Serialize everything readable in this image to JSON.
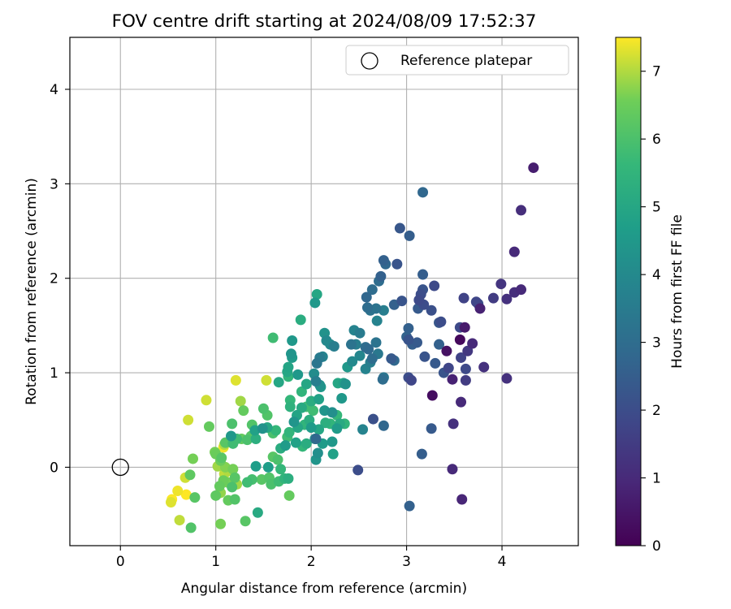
{
  "chart_data": {
    "type": "scatter",
    "title": "FOV centre drift starting at 2024/08/09 17:52:37",
    "xlabel": "Angular distance from reference (arcmin)",
    "ylabel": "Rotation from reference (arcmin)",
    "xlim": [
      -0.53,
      4.8
    ],
    "ylim": [
      -0.83,
      4.55
    ],
    "xticks": [
      0,
      1,
      2,
      3,
      4
    ],
    "yticks": [
      0,
      1,
      2,
      3,
      4
    ],
    "grid": true,
    "legend": {
      "placement": "top-right",
      "entries": [
        "Reference platepar"
      ]
    },
    "reference_point": {
      "x": 0,
      "y": 0,
      "label": "Reference platepar"
    },
    "colorbar": {
      "label": "Hours from first FF file",
      "min": 0,
      "max": 7.5,
      "ticks": [
        0,
        1,
        2,
        3,
        4,
        5,
        6,
        7
      ],
      "colormap": "viridis"
    },
    "points": [
      [
        4.33,
        3.17,
        0.7
      ],
      [
        4.2,
        2.72,
        1.1
      ],
      [
        4.13,
        2.28,
        1.0
      ],
      [
        4.2,
        1.88,
        1.0
      ],
      [
        4.13,
        1.85,
        1.1
      ],
      [
        4.05,
        1.78,
        1.2
      ],
      [
        3.99,
        1.94,
        1.3
      ],
      [
        3.91,
        1.79,
        1.5
      ],
      [
        3.75,
        1.73,
        2.0
      ],
      [
        3.73,
        1.75,
        1.8
      ],
      [
        3.77,
        1.68,
        0.8
      ],
      [
        3.6,
        1.79,
        1.7
      ],
      [
        3.56,
        1.48,
        1.9
      ],
      [
        3.61,
        1.48,
        0.6
      ],
      [
        3.56,
        1.35,
        0.2
      ],
      [
        3.42,
        1.23,
        0.4
      ],
      [
        3.64,
        1.23,
        1.4
      ],
      [
        3.69,
        1.31,
        1.0
      ],
      [
        3.57,
        1.16,
        1.7
      ],
      [
        3.62,
        1.04,
        1.9
      ],
      [
        3.81,
        1.06,
        1.2
      ],
      [
        3.62,
        0.92,
        1.5
      ],
      [
        3.44,
        1.05,
        1.8
      ],
      [
        3.48,
        0.93,
        0.8
      ],
      [
        3.39,
        1.0,
        2.2
      ],
      [
        3.3,
        1.1,
        2.4
      ],
      [
        3.34,
        1.3,
        2.6
      ],
      [
        3.34,
        1.53,
        2.3
      ],
      [
        3.36,
        1.54,
        2.0
      ],
      [
        3.29,
        1.92,
        1.9
      ],
      [
        3.17,
        1.88,
        2.2
      ],
      [
        3.15,
        1.83,
        2.0
      ],
      [
        3.13,
        1.77,
        1.9
      ],
      [
        3.12,
        1.68,
        2.4
      ],
      [
        3.18,
        1.72,
        2.0
      ],
      [
        3.26,
        1.66,
        2.1
      ],
      [
        3.17,
        2.04,
        2.5
      ],
      [
        3.17,
        2.91,
        2.8
      ],
      [
        3.03,
        2.45,
        2.5
      ],
      [
        2.93,
        2.53,
        2.3
      ],
      [
        2.9,
        2.15,
        2.2
      ],
      [
        2.76,
        2.19,
        2.6
      ],
      [
        2.78,
        2.15,
        2.8
      ],
      [
        2.71,
        1.97,
        3.0
      ],
      [
        2.73,
        2.02,
        2.6
      ],
      [
        2.95,
        1.76,
        2.2
      ],
      [
        2.87,
        1.72,
        2.6
      ],
      [
        2.76,
        1.66,
        3.6
      ],
      [
        2.68,
        1.68,
        3.2
      ],
      [
        2.64,
        1.88,
        3.0
      ],
      [
        2.58,
        1.8,
        2.8
      ],
      [
        2.59,
        1.69,
        3.0
      ],
      [
        2.62,
        1.66,
        3.2
      ],
      [
        2.69,
        1.55,
        3.8
      ],
      [
        2.51,
        1.42,
        3.5
      ],
      [
        2.45,
        1.45,
        3.8
      ],
      [
        2.42,
        1.3,
        3.2
      ],
      [
        2.47,
        1.3,
        3.6
      ],
      [
        2.57,
        1.27,
        3.0
      ],
      [
        2.6,
        1.25,
        2.9
      ],
      [
        2.68,
        1.32,
        3.2
      ],
      [
        2.7,
        1.2,
        3.4
      ],
      [
        2.64,
        1.15,
        3.0
      ],
      [
        2.62,
        1.11,
        3.6
      ],
      [
        2.57,
        1.04,
        3.8
      ],
      [
        2.51,
        1.18,
        3.9
      ],
      [
        2.43,
        1.12,
        4.0
      ],
      [
        2.38,
        1.06,
        4.5
      ],
      [
        2.34,
        0.89,
        4.8
      ],
      [
        2.36,
        0.88,
        4.3
      ],
      [
        2.32,
        0.73,
        4.5
      ],
      [
        2.28,
        0.89,
        5.0
      ],
      [
        2.75,
        0.93,
        3.0
      ],
      [
        2.76,
        0.95,
        3.3
      ],
      [
        2.84,
        1.15,
        2.4
      ],
      [
        2.87,
        1.13,
        2.8
      ],
      [
        3.0,
        1.38,
        2.7
      ],
      [
        3.02,
        1.35,
        2.2
      ],
      [
        3.06,
        1.3,
        2.5
      ],
      [
        3.11,
        1.32,
        2.4
      ],
      [
        3.02,
        1.47,
        2.6
      ],
      [
        3.02,
        0.95,
        2.0
      ],
      [
        3.05,
        0.92,
        1.8
      ],
      [
        3.19,
        1.17,
        2.2
      ],
      [
        3.27,
        0.76,
        0.3
      ],
      [
        3.26,
        0.41,
        2.4
      ],
      [
        3.49,
        0.46,
        1.2
      ],
      [
        3.16,
        0.14,
        2.5
      ],
      [
        3.57,
        0.69,
        1.0
      ],
      [
        3.48,
        -0.02,
        1.0
      ],
      [
        3.58,
        -0.34,
        0.9
      ],
      [
        3.03,
        -0.41,
        2.6
      ],
      [
        2.49,
        -0.03,
        2.0
      ],
      [
        2.65,
        0.51,
        2.1
      ],
      [
        2.76,
        0.44,
        2.8
      ],
      [
        2.54,
        0.4,
        3.8
      ],
      [
        4.05,
        0.94,
        1.2
      ],
      [
        2.14,
        1.42,
        4.3
      ],
      [
        2.16,
        1.34,
        4.0
      ],
      [
        2.2,
        1.3,
        4.0
      ],
      [
        2.24,
        1.28,
        3.6
      ],
      [
        2.12,
        1.17,
        3.8
      ],
      [
        2.09,
        1.16,
        3.5
      ],
      [
        2.06,
        1.1,
        3.3
      ],
      [
        2.03,
        0.99,
        4.1
      ],
      [
        2.05,
        0.91,
        3.6
      ],
      [
        2.09,
        0.87,
        4.3
      ],
      [
        2.1,
        0.85,
        4.5
      ],
      [
        2.04,
        1.74,
        4.5
      ],
      [
        2.06,
        1.83,
        5.0
      ],
      [
        1.89,
        1.56,
        5.2
      ],
      [
        1.8,
        1.34,
        4.5
      ],
      [
        1.79,
        1.2,
        4.4
      ],
      [
        1.8,
        1.16,
        4.6
      ],
      [
        1.76,
        1.06,
        4.9
      ],
      [
        1.75,
        1.01,
        5.0
      ],
      [
        1.76,
        0.96,
        5.5
      ],
      [
        1.6,
        1.37,
        5.8
      ],
      [
        1.66,
        0.9,
        5.0
      ],
      [
        1.86,
        0.98,
        4.5
      ],
      [
        1.95,
        0.88,
        5.0
      ],
      [
        1.9,
        0.8,
        5.5
      ],
      [
        2.0,
        0.7,
        5.2
      ],
      [
        2.08,
        0.72,
        4.8
      ],
      [
        2.14,
        0.6,
        4.4
      ],
      [
        2.22,
        0.58,
        4.2
      ],
      [
        2.27,
        0.41,
        4.6
      ],
      [
        2.3,
        0.46,
        5.1
      ],
      [
        2.35,
        0.46,
        5.5
      ],
      [
        2.2,
        0.46,
        5.5
      ],
      [
        2.15,
        0.47,
        5.3
      ],
      [
        2.08,
        0.4,
        5.0
      ],
      [
        2.04,
        0.3,
        4.3
      ],
      [
        2.05,
        0.3,
        2.8
      ],
      [
        2.12,
        0.25,
        4.6
      ],
      [
        2.07,
        0.15,
        4.2
      ],
      [
        2.23,
        0.14,
        4.8
      ],
      [
        2.22,
        0.27,
        4.5
      ],
      [
        1.98,
        0.5,
        5.2
      ],
      [
        1.93,
        0.45,
        5.5
      ],
      [
        1.9,
        0.63,
        5.1
      ],
      [
        1.85,
        0.55,
        4.9
      ],
      [
        1.78,
        0.64,
        5.4
      ],
      [
        1.78,
        0.71,
        5.6
      ],
      [
        1.82,
        0.48,
        4.4
      ],
      [
        1.86,
        0.42,
        5.0
      ],
      [
        1.77,
        0.37,
        5.5
      ],
      [
        1.75,
        0.32,
        5.8
      ],
      [
        1.73,
        0.23,
        4.6
      ],
      [
        1.68,
        0.2,
        5.2
      ],
      [
        1.63,
        0.39,
        5.6
      ],
      [
        1.6,
        0.36,
        6.0
      ],
      [
        1.54,
        0.42,
        5.0
      ],
      [
        1.49,
        0.41,
        4.3
      ],
      [
        1.5,
        0.62,
        6.0
      ],
      [
        1.54,
        0.55,
        6.1
      ],
      [
        1.42,
        0.3,
        5.3
      ],
      [
        1.38,
        0.45,
        6.1
      ],
      [
        1.33,
        0.29,
        6.0
      ],
      [
        1.37,
        0.33,
        6.2
      ],
      [
        1.27,
        0.3,
        6.4
      ],
      [
        1.29,
        0.6,
        6.4
      ],
      [
        1.26,
        0.7,
        6.9
      ],
      [
        1.21,
        0.92,
        7.3
      ],
      [
        1.53,
        0.92,
        7.2
      ],
      [
        1.17,
        0.46,
        6.0
      ],
      [
        1.16,
        0.33,
        4.5
      ],
      [
        1.18,
        0.25,
        5.8
      ],
      [
        1.09,
        0.24,
        7.0
      ],
      [
        1.08,
        0.21,
        7.4
      ],
      [
        1.0,
        0.14,
        6.5
      ],
      [
        0.99,
        0.16,
        6.6
      ],
      [
        1.06,
        0.1,
        6.2
      ],
      [
        1.05,
        0.07,
        6.5
      ],
      [
        1.02,
        0.01,
        6.9
      ],
      [
        1.1,
        0.0,
        6.7
      ],
      [
        1.13,
        -0.04,
        7.0
      ],
      [
        1.18,
        -0.02,
        6.6
      ],
      [
        1.09,
        -0.07,
        7.1
      ],
      [
        1.2,
        -0.11,
        6.2
      ],
      [
        1.12,
        -0.16,
        6.6
      ],
      [
        1.22,
        -0.18,
        6.9
      ],
      [
        1.17,
        -0.21,
        6.0
      ],
      [
        1.08,
        -0.14,
        6.5
      ],
      [
        1.04,
        -0.2,
        6.4
      ],
      [
        1.0,
        -0.3,
        6.3
      ],
      [
        1.05,
        -0.27,
        6.8
      ],
      [
        1.13,
        -0.35,
        6.4
      ],
      [
        1.2,
        -0.34,
        6.1
      ],
      [
        1.33,
        -0.16,
        5.8
      ],
      [
        1.38,
        -0.13,
        5.9
      ],
      [
        1.48,
        -0.13,
        6.2
      ],
      [
        1.56,
        -0.11,
        6.1
      ],
      [
        1.58,
        -0.18,
        6.0
      ],
      [
        1.66,
        -0.15,
        5.8
      ],
      [
        1.72,
        -0.12,
        5.5
      ],
      [
        1.68,
        -0.02,
        5.6
      ],
      [
        1.55,
        0.0,
        4.7
      ],
      [
        1.42,
        0.01,
        4.7
      ],
      [
        1.65,
        0.08,
        6.0
      ],
      [
        1.6,
        0.11,
        6.2
      ],
      [
        1.76,
        -0.12,
        5.3
      ],
      [
        1.77,
        -0.3,
        6.4
      ],
      [
        1.44,
        -0.48,
        5.1
      ],
      [
        1.31,
        -0.57,
        6.2
      ],
      [
        1.05,
        -0.6,
        6.6
      ],
      [
        0.74,
        -0.64,
        6.1
      ],
      [
        0.62,
        -0.56,
        7.1
      ],
      [
        0.69,
        -0.29,
        7.5
      ],
      [
        0.78,
        -0.32,
        6.2
      ],
      [
        0.73,
        -0.08,
        6.3
      ],
      [
        0.68,
        -0.11,
        7.2
      ],
      [
        0.6,
        -0.25,
        7.4
      ],
      [
        0.54,
        -0.34,
        7.5
      ],
      [
        0.53,
        -0.37,
        7.3
      ],
      [
        0.76,
        0.09,
        6.6
      ],
      [
        0.71,
        0.5,
        7.2
      ],
      [
        0.93,
        0.43,
        6.4
      ],
      [
        0.9,
        0.71,
        7.2
      ],
      [
        1.1,
        0.26,
        6.2
      ],
      [
        1.22,
        0.3,
        5.8
      ],
      [
        1.41,
        0.39,
        4.8
      ],
      [
        1.95,
        0.64,
        5.8
      ],
      [
        2.05,
        0.08,
        4.4
      ],
      [
        2.27,
        0.55,
        5.6
      ],
      [
        1.95,
        0.25,
        5.2
      ],
      [
        1.84,
        0.26,
        4.8
      ],
      [
        1.91,
        0.22,
        5.6
      ],
      [
        2.0,
        0.42,
        4.6
      ],
      [
        2.02,
        0.6,
        5.8
      ]
    ]
  }
}
